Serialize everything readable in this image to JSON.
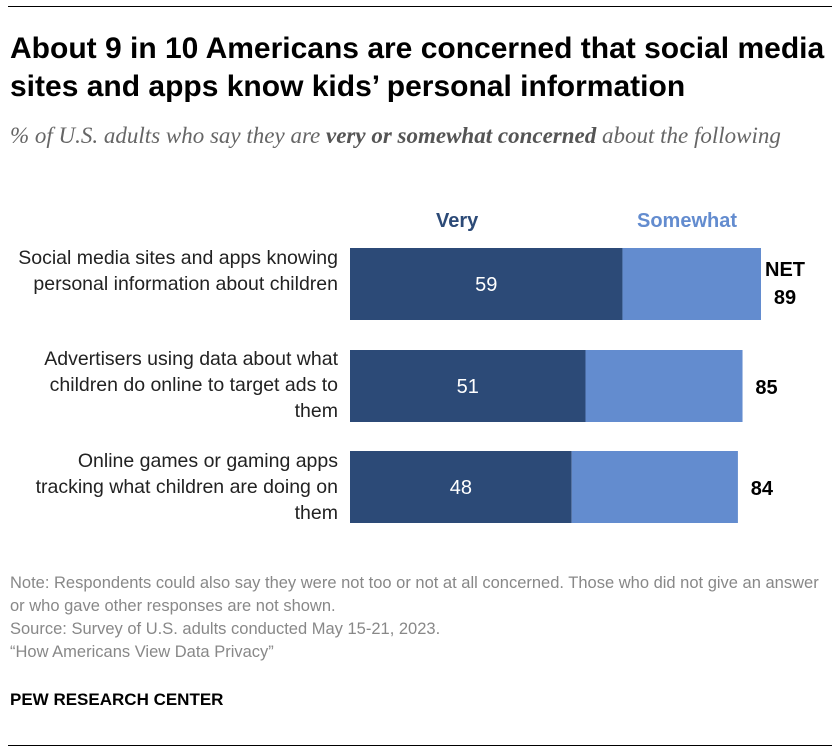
{
  "chart_data": {
    "type": "bar",
    "orientation": "horizontal",
    "stacked": true,
    "title": "About 9 in 10 Americans are concerned that social media sites and apps know kids’ personal information",
    "subtitle_parts": [
      "% of U.S. adults who say they are ",
      "very or somewhat concerned",
      " about the following"
    ],
    "categories": [
      "Social media sites and apps knowing personal information about children",
      "Advertisers using data about what children do online to target ads to them",
      "Online games or gaming apps tracking what children are doing on them"
    ],
    "series": [
      {
        "name": "Very",
        "values": [
          59,
          51,
          48
        ],
        "color": "#2c4a77"
      },
      {
        "name": "Somewhat",
        "values": [
          30,
          34,
          36
        ],
        "color": "#638ccf"
      }
    ],
    "net": {
      "label": "NET",
      "values": [
        89,
        85,
        84
      ]
    },
    "xlim": [
      0,
      100
    ],
    "grid": false,
    "legend_position": "top"
  },
  "notes": {
    "note": "Note: Respondents could also say they were not too or not at all concerned. Those who did not give an answer or who gave other responses are not shown.",
    "source": "Source: Survey of U.S. adults conducted May 15-21, 2023.",
    "report": "“How Americans View Data Privacy”"
  },
  "footer": "PEW RESEARCH CENTER"
}
